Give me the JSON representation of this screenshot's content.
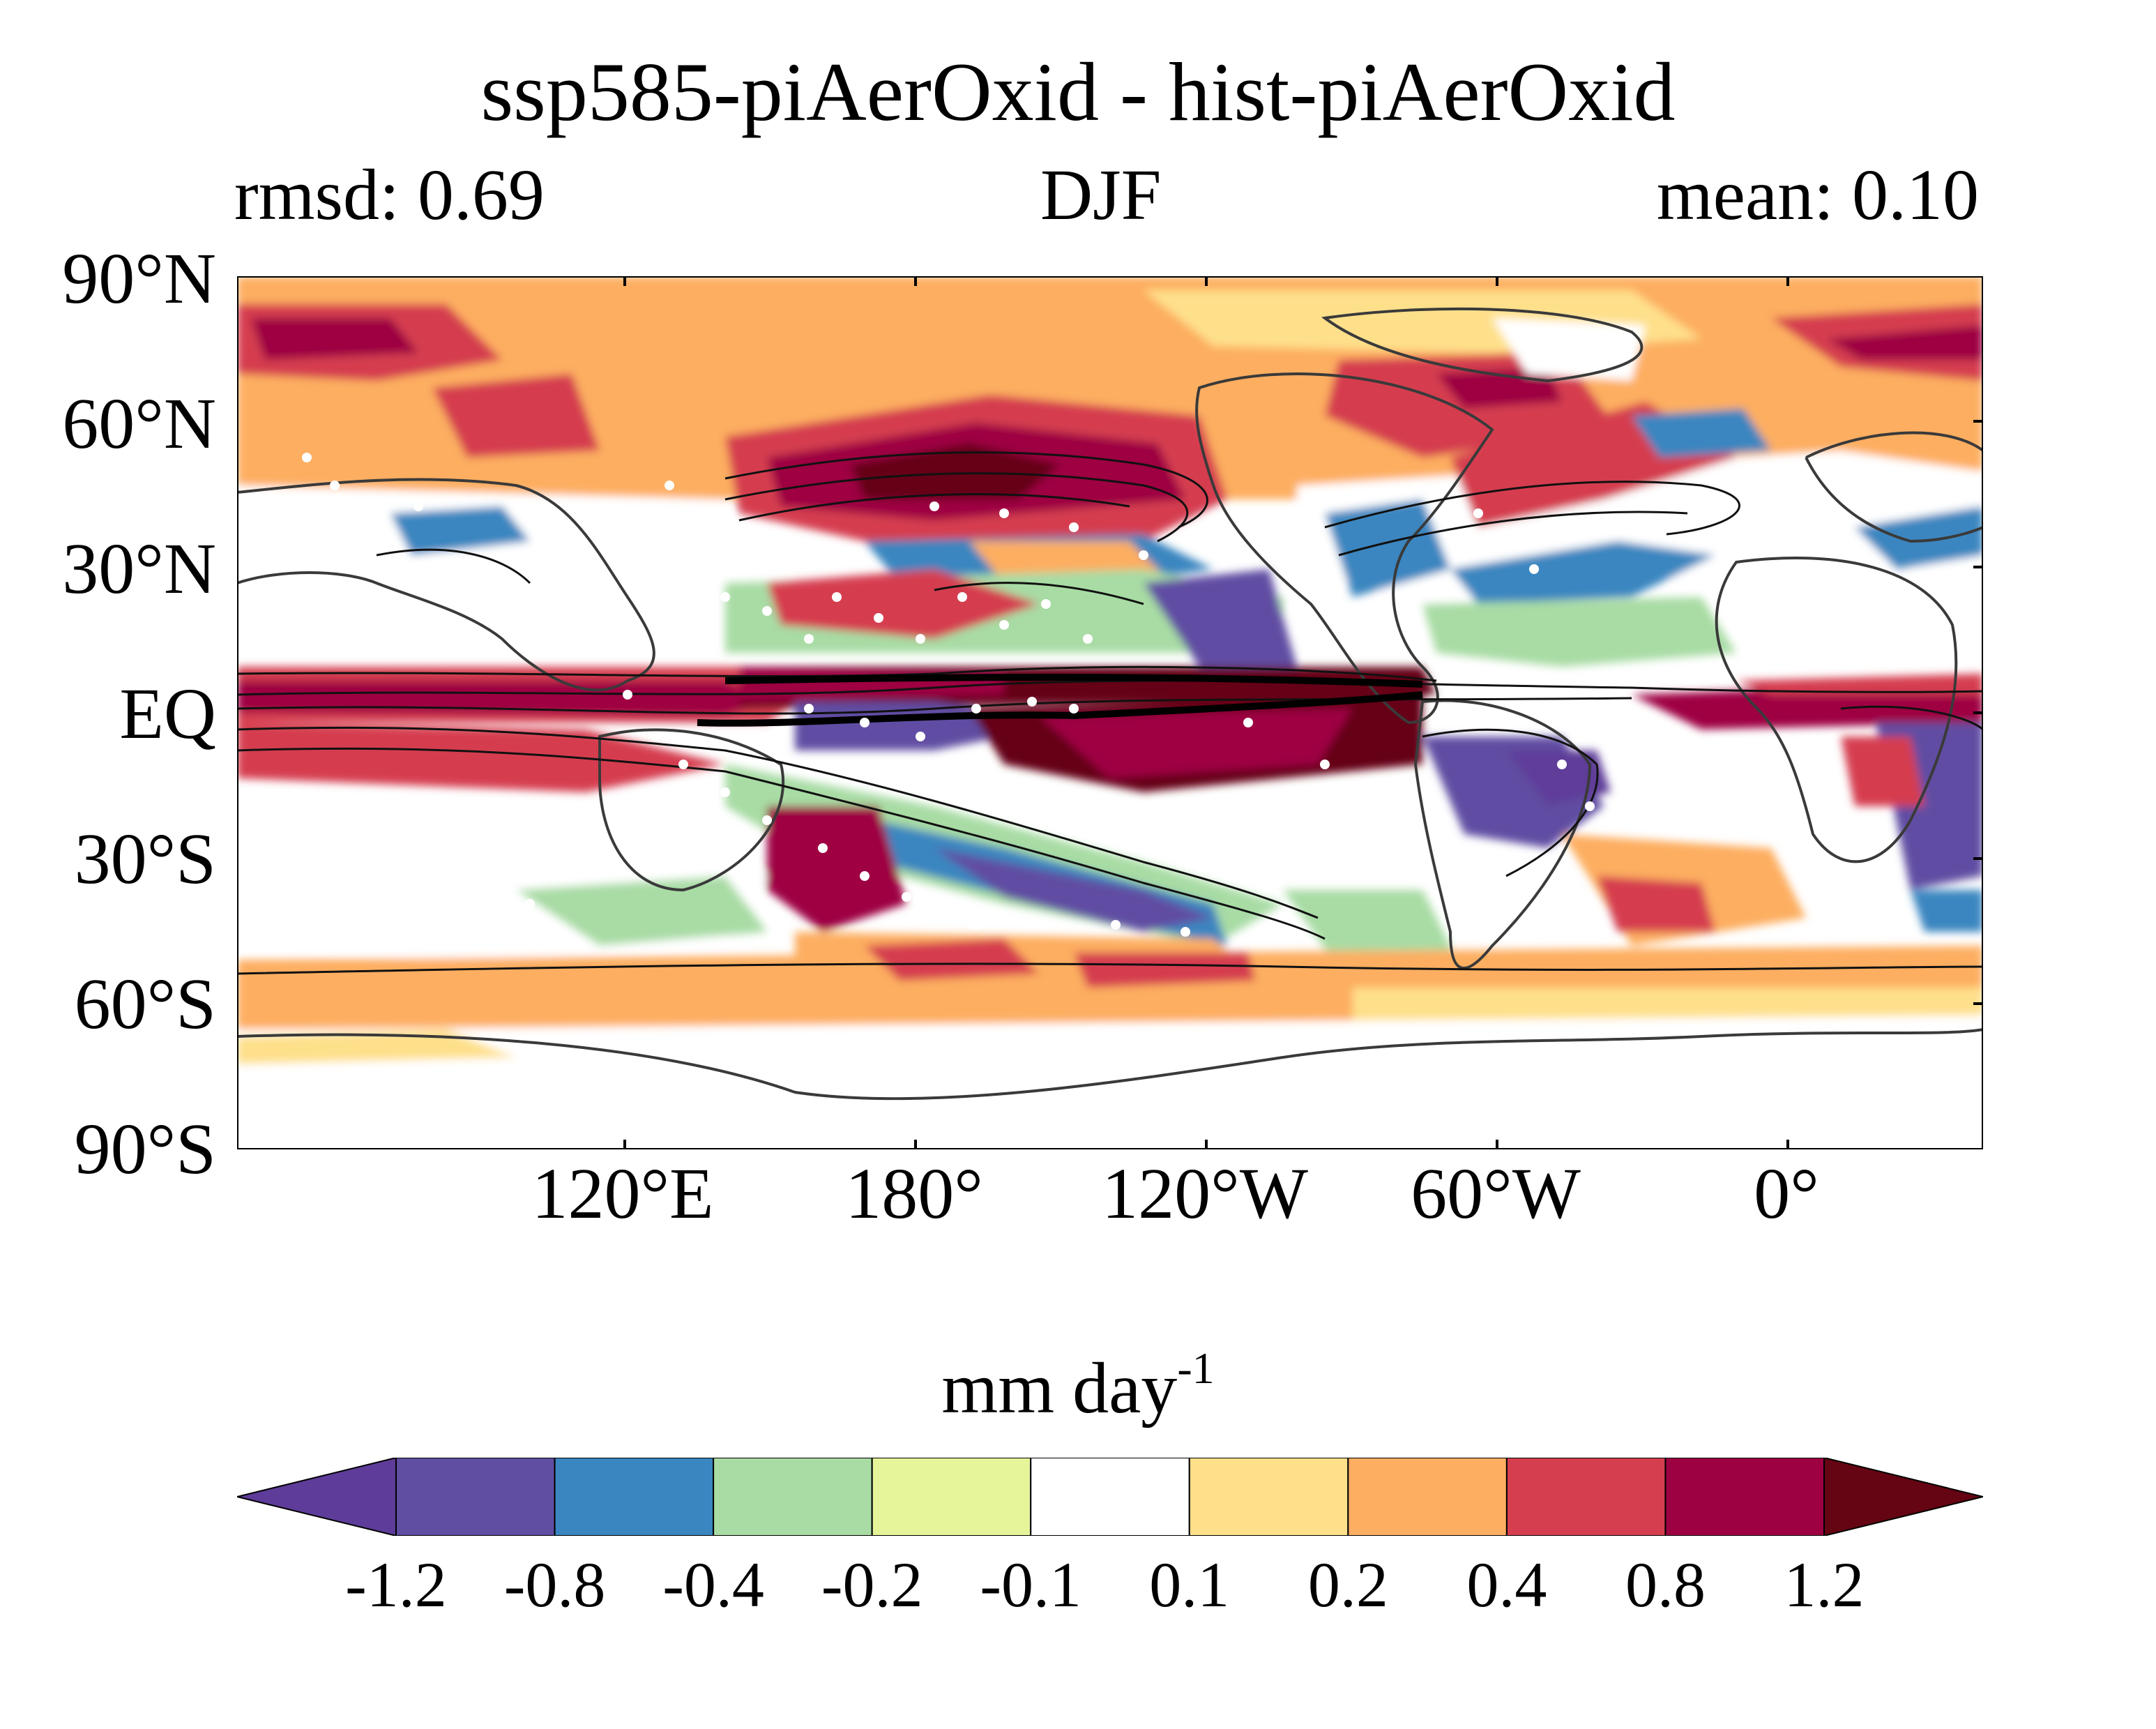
{
  "title": "ssp585-piAerOxid - hist-piAerOxid",
  "subtitle": {
    "left": "rmsd: 0.69",
    "center": "DJF",
    "right": "mean: 0.10"
  },
  "map": {
    "projection": "equirectangular, centered on 150°W",
    "lat_ticks": [
      "90°N",
      "60°N",
      "30°N",
      "EQ",
      "30°S",
      "60°S",
      "90°S"
    ],
    "lon_ticks": [
      "120°E",
      "180°",
      "120°W",
      "60°W",
      "0°"
    ],
    "overlays": [
      "black contour lines (climatology)",
      "white stippling dots (significance)",
      "coastlines"
    ]
  },
  "colorbar": {
    "unit_base": "mm day",
    "unit_exp": "-1",
    "levels": [
      "-1.2",
      "-0.8",
      "-0.4",
      "-0.2",
      "-0.1",
      "0.1",
      "0.2",
      "0.4",
      "0.8",
      "1.2"
    ],
    "colors": [
      "#5e3c99",
      "#604ea3",
      "#3a86c0",
      "#a8dca4",
      "#e6f59a",
      "#ffffff",
      "#fee08b",
      "#fdae61",
      "#d53e4f",
      "#9e0142",
      "#650412"
    ],
    "extend": "both"
  }
}
